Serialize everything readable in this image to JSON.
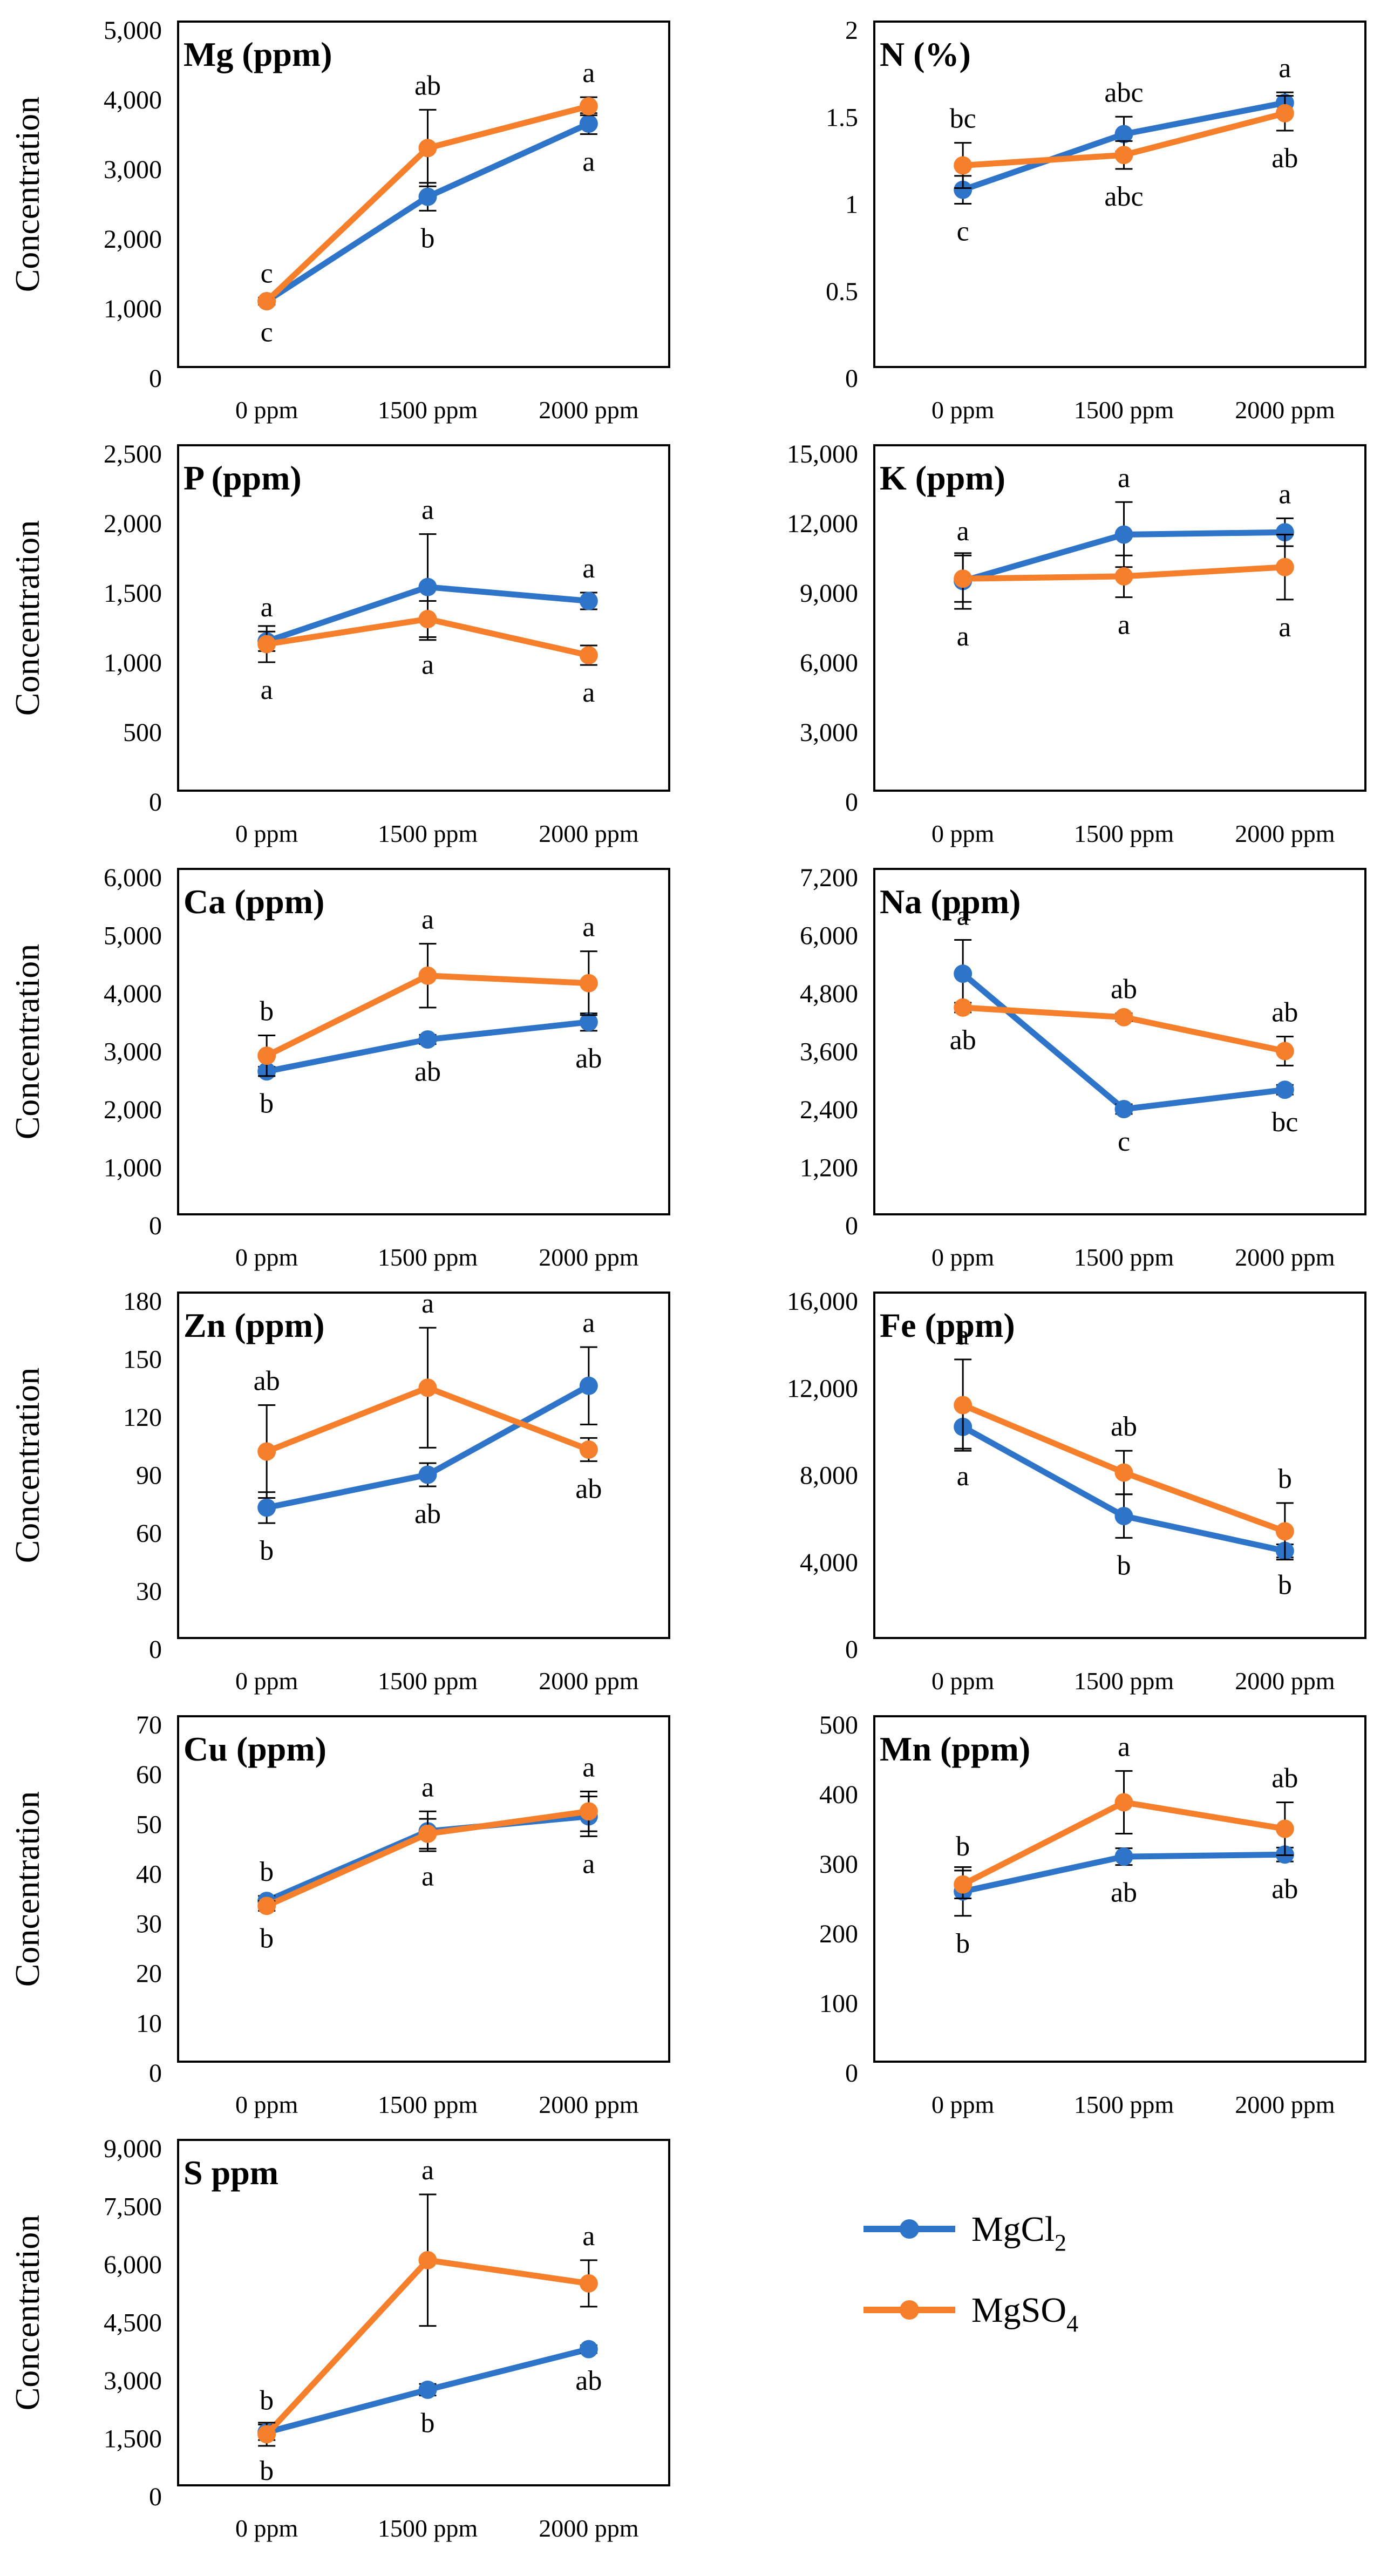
{
  "legend": {
    "items": [
      {
        "label": "MgCl",
        "sub": "2",
        "color": "#2e75c9"
      },
      {
        "label": "MgSO",
        "sub": "4",
        "color": "#f57f2a"
      }
    ]
  },
  "colors": {
    "mgcl2": "#2e75c9",
    "mgso4": "#f57f2a",
    "error_bar": "#000000",
    "frame": "#000000"
  },
  "chart_data": [
    {
      "type": "line",
      "title": "Mg (ppm)",
      "ylabel": "Concentration",
      "categories": [
        "0 ppm",
        "1500 ppm",
        "2000 ppm"
      ],
      "ylim": [
        0,
        5000
      ],
      "yticks": [
        "0",
        "1,000",
        "2,000",
        "3,000",
        "4,000",
        "5,000"
      ],
      "series": [
        {
          "name": "MgCl2",
          "values": [
            1100,
            2600,
            3650
          ],
          "errors": [
            50,
            200,
            150
          ],
          "letters": [
            "c",
            "b",
            "a"
          ]
        },
        {
          "name": "MgSO4",
          "values": [
            1100,
            3300,
            3900
          ],
          "errors": [
            50,
            550,
            130
          ],
          "letters": [
            "c",
            "ab",
            "a"
          ]
        }
      ]
    },
    {
      "type": "line",
      "title": "N (%)",
      "ylabel": "",
      "categories": [
        "0 ppm",
        "1500 ppm",
        "2000 ppm"
      ],
      "ylim": [
        0,
        2
      ],
      "yticks": [
        "0",
        "0.5",
        "1",
        "1.5",
        "2"
      ],
      "series": [
        {
          "name": "MgCl2",
          "values": [
            1.08,
            1.4,
            1.58
          ],
          "errors": [
            0.08,
            0.1,
            0.06
          ],
          "letters": [
            "c",
            "abc",
            "a"
          ]
        },
        {
          "name": "MgSO4",
          "values": [
            1.22,
            1.28,
            1.52
          ],
          "errors": [
            0.13,
            0.08,
            0.1
          ],
          "letters": [
            "bc",
            "abc",
            "ab"
          ]
        }
      ]
    },
    {
      "type": "line",
      "title": "P (ppm)",
      "ylabel": "Concentration",
      "categories": [
        "0 ppm",
        "1500 ppm",
        "2000 ppm"
      ],
      "ylim": [
        0,
        2500
      ],
      "yticks": [
        "0",
        "500",
        "1,000",
        "1,500",
        "2,000",
        "2,500"
      ],
      "series": [
        {
          "name": "MgCl2",
          "values": [
            1150,
            1540,
            1440
          ],
          "errors": [
            70,
            380,
            60
          ],
          "letters": [
            "a",
            "a",
            "a"
          ]
        },
        {
          "name": "MgSO4",
          "values": [
            1130,
            1310,
            1050
          ],
          "errors": [
            130,
            130,
            70
          ],
          "letters": [
            "a",
            "a",
            "a"
          ]
        }
      ]
    },
    {
      "type": "line",
      "title": "K (ppm)",
      "ylabel": "",
      "categories": [
        "0 ppm",
        "1500 ppm",
        "2000 ppm"
      ],
      "ylim": [
        0,
        15000
      ],
      "yticks": [
        "0",
        "3,000",
        "6,000",
        "9,000",
        "12,000",
        "15,000"
      ],
      "series": [
        {
          "name": "MgCl2",
          "values": [
            9500,
            11500,
            11600
          ],
          "errors": [
            1200,
            1400,
            600
          ],
          "letters": [
            "a",
            "a",
            "a"
          ]
        },
        {
          "name": "MgSO4",
          "values": [
            9600,
            9700,
            10100
          ],
          "errors": [
            1000,
            900,
            1400
          ],
          "letters": [
            "a",
            "a",
            "a"
          ]
        }
      ]
    },
    {
      "type": "line",
      "title": "Ca (ppm)",
      "ylabel": "Concentration",
      "categories": [
        "0 ppm",
        "1500 ppm",
        "2000 ppm"
      ],
      "ylim": [
        0,
        6000
      ],
      "yticks": [
        "0",
        "1,000",
        "2,000",
        "3,000",
        "4,000",
        "5,000",
        "6,000"
      ],
      "series": [
        {
          "name": "MgCl2",
          "values": [
            2650,
            3200,
            3500
          ],
          "errors": [
            80,
            80,
            150
          ],
          "letters": [
            "b",
            "ab",
            "ab"
          ]
        },
        {
          "name": "MgSO4",
          "values": [
            2920,
            4300,
            4170
          ],
          "errors": [
            350,
            550,
            550
          ],
          "letters": [
            "b",
            "a",
            "a"
          ]
        }
      ]
    },
    {
      "type": "line",
      "title": "Na (ppm)",
      "ylabel": "",
      "categories": [
        "0 ppm",
        "1500 ppm",
        "2000 ppm"
      ],
      "ylim": [
        0,
        7200
      ],
      "yticks": [
        "0",
        "1,200",
        "2,400",
        "3,600",
        "4,800",
        "6,000",
        "7,200"
      ],
      "series": [
        {
          "name": "MgCl2",
          "values": [
            5200,
            2400,
            2800
          ],
          "errors": [
            700,
            100,
            100
          ],
          "letters": [
            "a",
            "c",
            "bc"
          ]
        },
        {
          "name": "MgSO4",
          "values": [
            4500,
            4300,
            3600
          ],
          "errors": [
            100,
            80,
            300
          ],
          "letters": [
            "ab",
            "ab",
            "ab"
          ]
        }
      ]
    },
    {
      "type": "line",
      "title": "Zn (ppm)",
      "ylabel": "Concentration",
      "categories": [
        "0 ppm",
        "1500 ppm",
        "2000 ppm"
      ],
      "ylim": [
        0,
        180
      ],
      "yticks": [
        "0",
        "30",
        "60",
        "90",
        "120",
        "150",
        "180"
      ],
      "series": [
        {
          "name": "MgCl2",
          "values": [
            73,
            90,
            136
          ],
          "errors": [
            8,
            6,
            20
          ],
          "letters": [
            "b",
            "ab",
            "a"
          ]
        },
        {
          "name": "MgSO4",
          "values": [
            102,
            135,
            103
          ],
          "errors": [
            24,
            31,
            6
          ],
          "letters": [
            "ab",
            "a",
            "ab"
          ]
        }
      ]
    },
    {
      "type": "line",
      "title": "Fe (ppm)",
      "ylabel": "",
      "categories": [
        "0 ppm",
        "1500 ppm",
        "2000 ppm"
      ],
      "ylim": [
        0,
        16000
      ],
      "yticks": [
        "0",
        "4,000",
        "8,000",
        "12,000",
        "16,000"
      ],
      "series": [
        {
          "name": "MgCl2",
          "values": [
            10200,
            6100,
            4500
          ],
          "errors": [
            1000,
            1000,
            300
          ],
          "letters": [
            "a",
            "b",
            "b"
          ]
        },
        {
          "name": "MgSO4",
          "values": [
            11200,
            8100,
            5400
          ],
          "errors": [
            2100,
            1000,
            1300
          ],
          "letters": [
            "a",
            "ab",
            "b"
          ]
        }
      ]
    },
    {
      "type": "line",
      "title": "Cu (ppm)",
      "ylabel": "Concentration",
      "categories": [
        "0 ppm",
        "1500 ppm",
        "2000 ppm"
      ],
      "ylim": [
        0,
        70
      ],
      "yticks": [
        "0",
        "10",
        "20",
        "30",
        "40",
        "50",
        "60",
        "70"
      ],
      "series": [
        {
          "name": "MgCl2",
          "values": [
            34.5,
            48.5,
            51.5
          ],
          "errors": [
            1,
            4,
            4
          ],
          "letters": [
            "b",
            "a",
            "a"
          ]
        },
        {
          "name": "MgSO4",
          "values": [
            33.5,
            48,
            52.5
          ],
          "errors": [
            1,
            3,
            4
          ],
          "letters": [
            "b",
            "a",
            "a"
          ]
        }
      ]
    },
    {
      "type": "line",
      "title": "Mn (ppm)",
      "ylabel": "",
      "categories": [
        "0 ppm",
        "1500 ppm",
        "2000 ppm"
      ],
      "ylim": [
        0,
        500
      ],
      "yticks": [
        "0",
        "100",
        "200",
        "300",
        "400",
        "500"
      ],
      "series": [
        {
          "name": "MgCl2",
          "values": [
            260,
            310,
            313
          ],
          "errors": [
            35,
            12,
            10
          ],
          "letters": [
            "b",
            "ab",
            "ab"
          ]
        },
        {
          "name": "MgSO4",
          "values": [
            270,
            388,
            350
          ],
          "errors": [
            20,
            45,
            38
          ],
          "letters": [
            "b",
            "a",
            "ab"
          ]
        }
      ]
    },
    {
      "type": "line",
      "title": "S ppm",
      "ylabel": "Concentration",
      "categories": [
        "0 ppm",
        "1500 ppm",
        "2000 ppm"
      ],
      "ylim": [
        0,
        9000
      ],
      "yticks": [
        "0",
        "1,500",
        "3,000",
        "4,500",
        "6,000",
        "7,500",
        "9,000"
      ],
      "series": [
        {
          "name": "MgCl2",
          "values": [
            1650,
            2750,
            3800
          ],
          "errors": [
            200,
            150,
            100
          ],
          "letters": [
            "b",
            "b",
            "ab"
          ]
        },
        {
          "name": "MgSO4",
          "values": [
            1600,
            6100,
            5500
          ],
          "errors": [
            300,
            1700,
            600
          ],
          "letters": [
            "b",
            "a",
            "a"
          ]
        }
      ]
    }
  ]
}
